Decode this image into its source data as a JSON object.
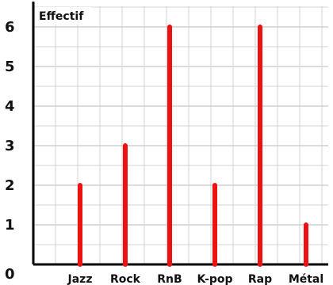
{
  "chart_data": {
    "type": "bar",
    "title": "",
    "xlabel": "",
    "ylabel": "Effectif",
    "categories": [
      "Jazz",
      "Rock",
      "RnB",
      "K-pop",
      "Rap",
      "Métal"
    ],
    "values": [
      2,
      3,
      6,
      2,
      6,
      1
    ],
    "ylim": [
      0,
      6.5
    ],
    "y_ticks": [
      "0",
      "1",
      "2",
      "3",
      "4",
      "5",
      "6"
    ],
    "grid": true,
    "legend": "none",
    "bar_color": "#ee1111",
    "grid_color": "#c8c8c8",
    "axis_color": "#000000"
  }
}
